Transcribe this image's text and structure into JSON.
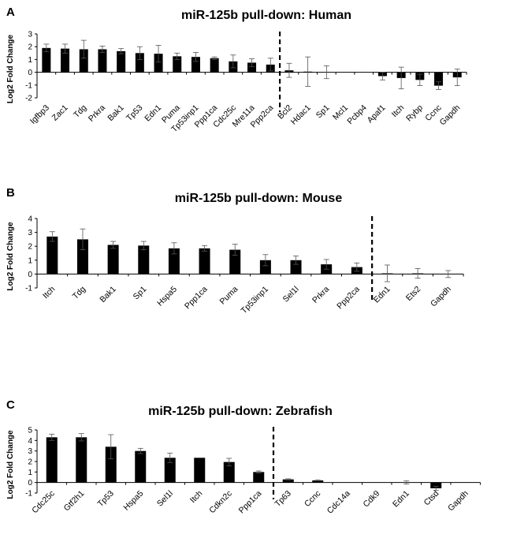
{
  "chart_data": [
    {
      "type": "bar",
      "panel": "A",
      "title": "miR-125b pull-down: Human",
      "ylabel": "Log2 Fold Change",
      "ylim": [
        -2,
        3
      ],
      "yticks": [
        -2,
        -1,
        0,
        1,
        2,
        3
      ],
      "divider_after": "Ppp2ca",
      "categories": [
        "Igfbp3",
        "Zac1",
        "Tdg",
        "Prkra",
        "Bak1",
        "Tp53",
        "Edn1",
        "Puma",
        "Tp53inp1",
        "Ppp1ca",
        "Cdc25c",
        "Mre11a",
        "Ppp2ca",
        "Bcl2",
        "Hdac1",
        "Sp1",
        "Mcl1",
        "Pcbp4",
        "Apaf1",
        "Itch",
        "Rybp",
        "Ccnc",
        "Gapdh"
      ],
      "values": [
        1.9,
        1.85,
        1.8,
        1.8,
        1.65,
        1.5,
        1.45,
        1.25,
        1.2,
        1.1,
        0.85,
        0.75,
        0.6,
        0.15,
        0.05,
        0.0,
        0.0,
        0.0,
        -0.3,
        -0.45,
        -0.6,
        -1.05,
        -0.4
      ],
      "errors": [
        0.3,
        0.35,
        0.7,
        0.25,
        0.2,
        0.5,
        0.65,
        0.25,
        0.35,
        0.1,
        0.5,
        0.3,
        0.5,
        0.55,
        1.15,
        0.5,
        0,
        0,
        0.3,
        0.85,
        0.45,
        0.3,
        0.65
      ]
    },
    {
      "type": "bar",
      "panel": "B",
      "title": "miR-125b pull-down: Mouse",
      "ylabel": "Log2 Fold Change",
      "ylim": [
        -1,
        4
      ],
      "yticks": [
        -1,
        0,
        1,
        2,
        3,
        4
      ],
      "divider_after": "Ppp2ca",
      "categories": [
        "Itch",
        "Tdg",
        "Bak1",
        "Sp1",
        "Hspa5",
        "Ppp1ca",
        "Puma",
        "Tp53inp1",
        "Sel1l",
        "Prkra",
        "Ppp2ca",
        "Edn1",
        "Ets2",
        "Gapdh"
      ],
      "values": [
        2.7,
        2.5,
        2.1,
        2.05,
        1.85,
        1.85,
        1.75,
        1.0,
        1.0,
        0.7,
        0.5,
        0.05,
        0.05,
        0.0
      ],
      "errors": [
        0.35,
        0.75,
        0.25,
        0.3,
        0.4,
        0.2,
        0.4,
        0.4,
        0.3,
        0.35,
        0.3,
        0.6,
        0.35,
        0.25
      ]
    },
    {
      "type": "bar",
      "panel": "C",
      "title": "miR-125b pull-down: Zebrafish",
      "ylabel": "Log2 Fold Change",
      "ylim": [
        -1,
        5
      ],
      "yticks": [
        -1,
        0,
        1,
        2,
        3,
        4,
        5
      ],
      "divider_after": "Ppp1ca",
      "categories": [
        "Cdc25c",
        "Gtf2h1",
        "Tp53",
        "Hspa5",
        "Sel1l",
        "Itch",
        "Cdkn2c",
        "Ppp1ca",
        "Tp63",
        "Ccnc",
        "Cdc14a",
        "Cdk9",
        "Edn1",
        "Ctsd",
        "Gapdh"
      ],
      "values": [
        4.3,
        4.3,
        3.4,
        3.0,
        2.35,
        2.35,
        1.95,
        1.0,
        0.3,
        0.2,
        0.0,
        0.0,
        0.0,
        -0.55,
        0.0
      ],
      "errors": [
        0.3,
        0.35,
        1.15,
        0.25,
        0.45,
        0.0,
        0.35,
        0.1,
        0.05,
        0.05,
        0.0,
        0.0,
        0.15,
        0.2,
        0.0
      ]
    }
  ]
}
